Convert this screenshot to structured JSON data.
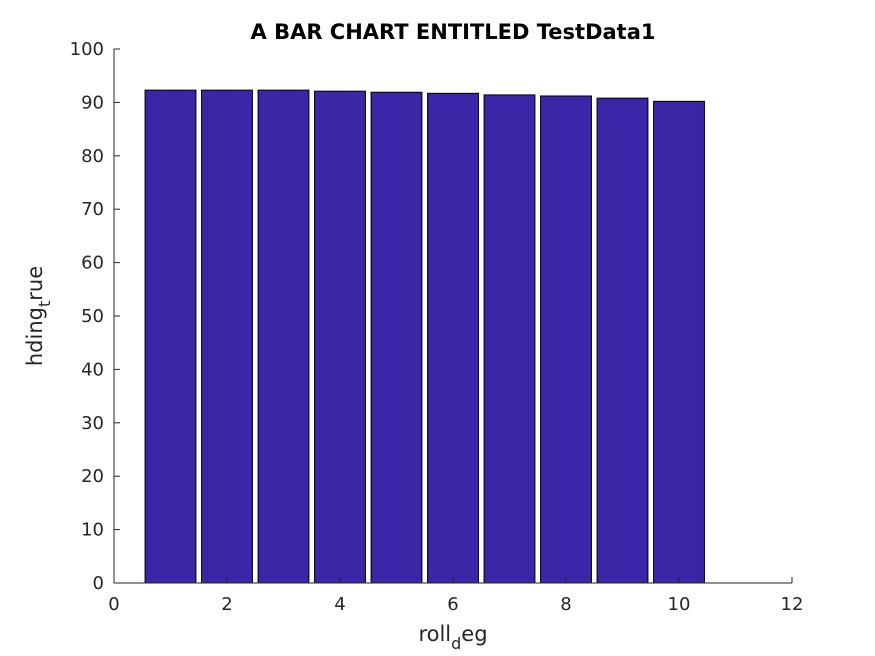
{
  "chart_data": {
    "type": "bar",
    "title": "A BAR CHART ENTITLED TestData1",
    "xlabel": {
      "base": "roll",
      "sub": "d",
      "rest": "eg"
    },
    "ylabel": {
      "base": "hding",
      "sub": "t",
      "rest": "rue"
    },
    "x": [
      1,
      2,
      3,
      4,
      5,
      6,
      7,
      8,
      9,
      10
    ],
    "values": [
      92.3,
      92.3,
      92.3,
      92.1,
      91.9,
      91.7,
      91.4,
      91.2,
      90.8,
      90.2
    ],
    "xlim": [
      0,
      12
    ],
    "ylim": [
      0,
      100
    ],
    "xticks": [
      0,
      2,
      4,
      6,
      8,
      10,
      12
    ],
    "yticks": [
      0,
      10,
      20,
      30,
      40,
      50,
      60,
      70,
      80,
      90,
      100
    ],
    "bar_color": "#3b26a7",
    "grid": false,
    "legend": false
  }
}
